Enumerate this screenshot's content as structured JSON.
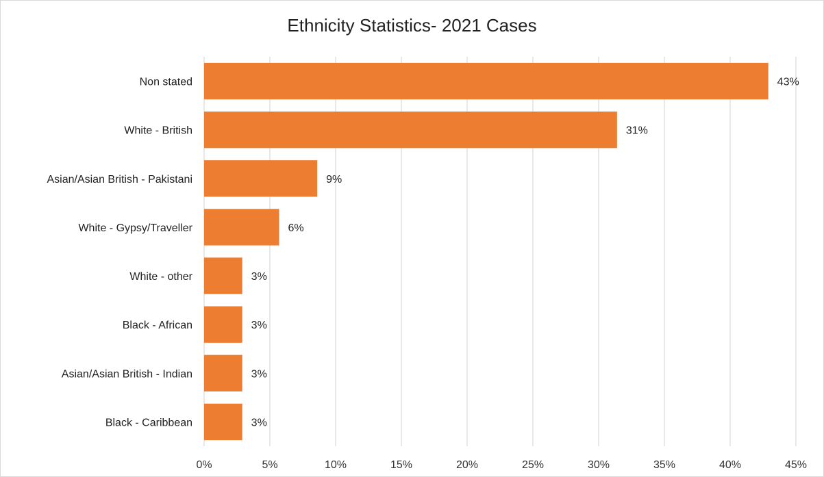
{
  "chart_data": {
    "type": "bar",
    "orientation": "horizontal",
    "title": "Ethnicity Statistics- 2021 Cases",
    "categories": [
      "Non stated",
      "White - British",
      "Asian/Asian British - Pakistani",
      "White - Gypsy/Traveller",
      "White - other",
      "Black - African",
      "Asian/Asian British - Indian",
      "Black - Caribbean"
    ],
    "values": [
      42.9,
      31.4,
      8.6,
      5.7,
      2.9,
      2.9,
      2.9,
      2.9
    ],
    "data_labels": [
      "43%",
      "31%",
      "9%",
      "6%",
      "3%",
      "3%",
      "3%",
      "3%"
    ],
    "xlim": [
      0,
      45
    ],
    "xticks": [
      0,
      5,
      10,
      15,
      20,
      25,
      30,
      35,
      40,
      45
    ],
    "xtick_labels": [
      "0%",
      "5%",
      "10%",
      "15%",
      "20%",
      "25%",
      "30%",
      "35%",
      "40%",
      "45%"
    ],
    "grid": "vertical",
    "bar_color": "#ED7D31",
    "grid_color": "#d9d9d9"
  }
}
